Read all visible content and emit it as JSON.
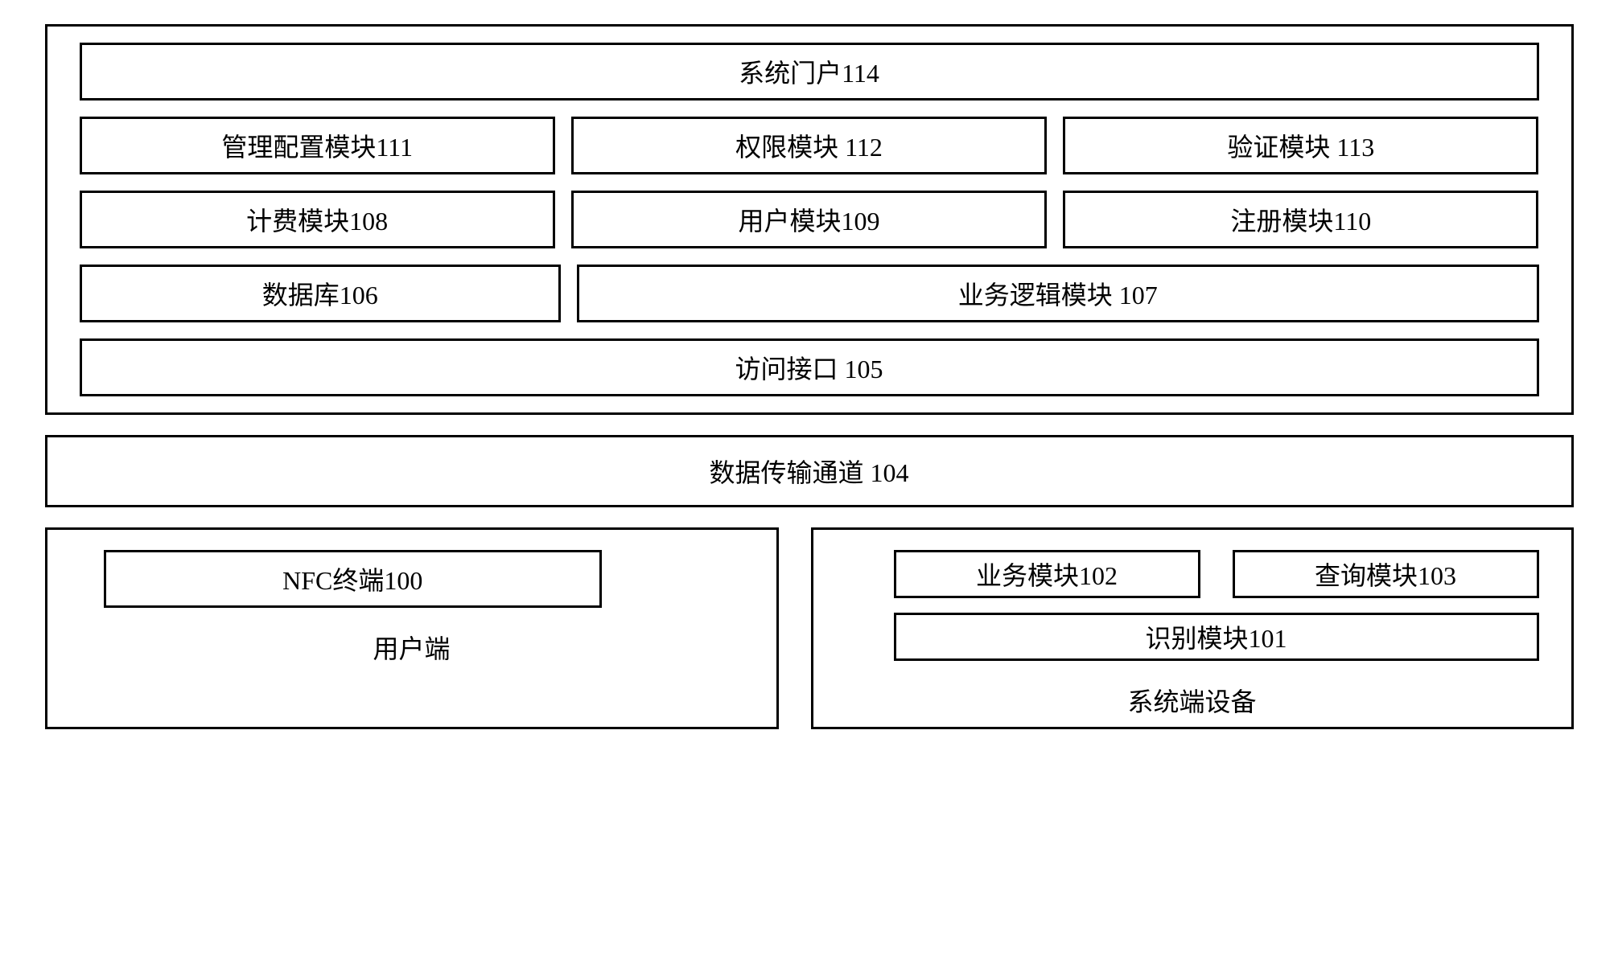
{
  "diagram": {
    "type": "architecture-block",
    "background_color": "#ffffff",
    "border_color": "#000000",
    "border_width": 3.5,
    "font_family": "SimSun",
    "label_fontsize": 32,
    "server": {
      "portal": "系统门户114",
      "row2": {
        "mgmt_config": "管理配置模块111",
        "permission": "权限模块 112",
        "verification": "验证模块 113"
      },
      "row3": {
        "billing": "计费模块108",
        "user": "用户模块109",
        "register": "注册模块110"
      },
      "row4": {
        "database": "数据库106",
        "business_logic": "业务逻辑模块 107"
      },
      "access_interface": "访问接口 105"
    },
    "channel": "数据传输通道 104",
    "client": {
      "nfc_terminal": "NFC终端100",
      "label": "用户端"
    },
    "system_device": {
      "business": "业务模块102",
      "query": "查询模块103",
      "recognition": "识别模块101",
      "label": "系统端设备"
    }
  }
}
